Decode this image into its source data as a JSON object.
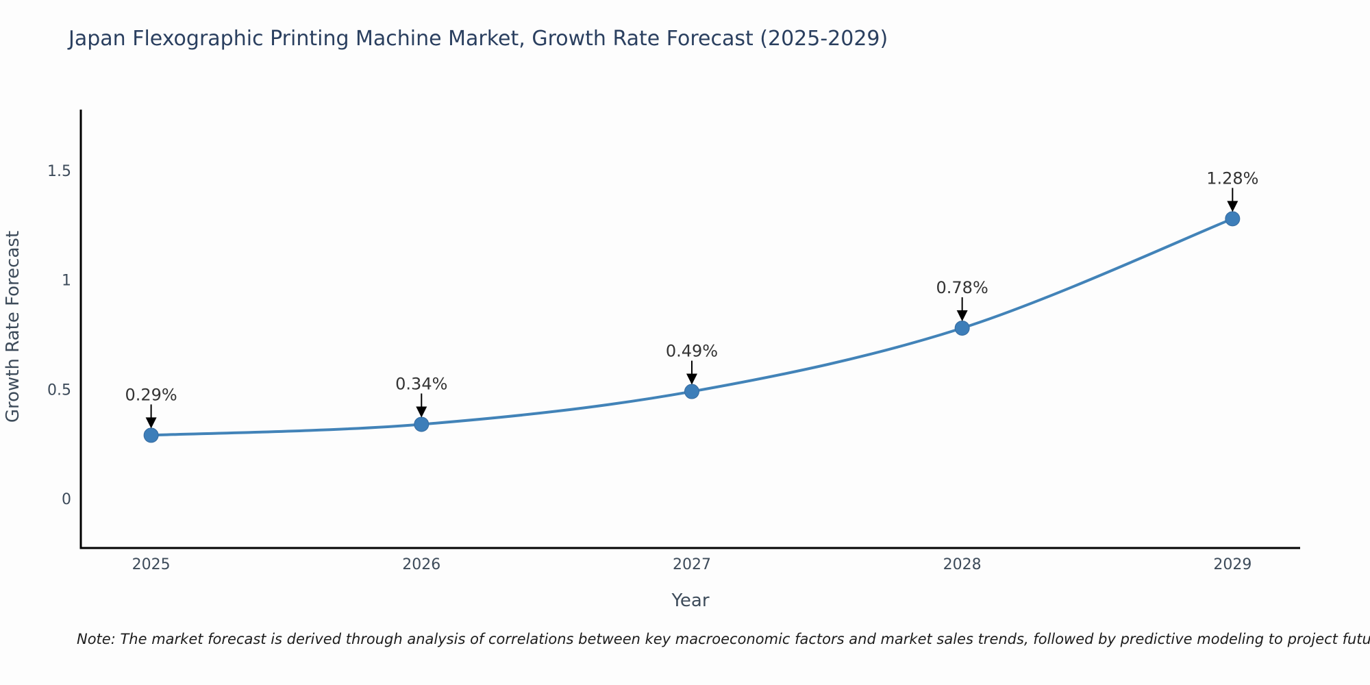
{
  "page": {
    "background": "#fdfdfd"
  },
  "chart_data": {
    "type": "line",
    "title": "Japan Flexographic Printing Machine Market, Growth Rate Forecast (2025-2029)",
    "xlabel": "Year",
    "ylabel": "Growth Rate Forecast",
    "x": [
      2025,
      2026,
      2027,
      2028,
      2029
    ],
    "series": [
      {
        "name": "Growth Rate Forecast",
        "values": [
          0.29,
          0.34,
          0.49,
          0.78,
          1.28
        ],
        "point_labels": [
          "0.29%",
          "0.34%",
          "0.49%",
          "0.78%",
          "1.28%"
        ]
      }
    ],
    "x_tick_labels": [
      "2025",
      "2026",
      "2027",
      "2028",
      "2029"
    ],
    "y_ticks": [
      0,
      0.5,
      1,
      1.5
    ],
    "y_tick_labels": [
      "0",
      "0.5",
      "1",
      "1.5"
    ],
    "xlim": [
      2024.74,
      2029.25
    ],
    "ylim": [
      -0.2255,
      1.779
    ],
    "grid": false,
    "legend": false,
    "smooth_line": true,
    "annotation_arrows": true,
    "note": "Note: The market forecast is derived through analysis of correlations between key macroeconomic factors and market sales trends, followed by predictive modeling to project future sales"
  },
  "style": {
    "background": "#fdfdfd",
    "title_color": "#2a3f5f",
    "tick_color": "#3d4b5a",
    "annotation_color": "#333333",
    "note_color": "#1c1c1c",
    "axis_color": "#000000",
    "line_color": "#4283b8",
    "marker_color": "#3d7eb9",
    "marker_edge_color": "#356a9e",
    "arrow_color": "#000000"
  }
}
